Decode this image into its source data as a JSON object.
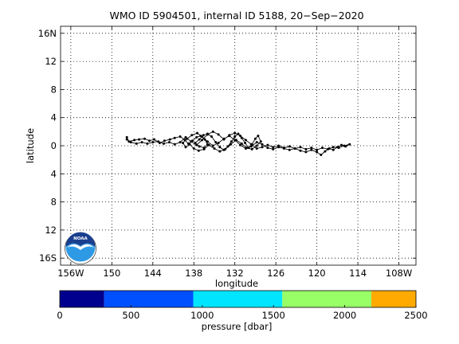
{
  "chart_data": {
    "type": "line",
    "title": "WMO ID 5904501, internal ID 5188, 20−Sep−2020",
    "xlabel": "longitude",
    "ylabel": "latitude",
    "xlim": [
      -157.5,
      -105.5
    ],
    "ylim": [
      -17,
      17
    ],
    "grid": true,
    "x_ticks": [
      {
        "value": -156,
        "label": "156W"
      },
      {
        "value": -150,
        "label": "150"
      },
      {
        "value": -144,
        "label": "144"
      },
      {
        "value": -138,
        "label": "138"
      },
      {
        "value": -132,
        "label": "132"
      },
      {
        "value": -126,
        "label": "126"
      },
      {
        "value": -120,
        "label": "120"
      },
      {
        "value": -114,
        "label": "114"
      },
      {
        "value": -108,
        "label": "108W"
      }
    ],
    "y_ticks": [
      {
        "value": 16,
        "label": "16N"
      },
      {
        "value": 12,
        "label": "12"
      },
      {
        "value": 8,
        "label": "8"
      },
      {
        "value": 4,
        "label": "4"
      },
      {
        "value": 0,
        "label": "0"
      },
      {
        "value": -4,
        "label": "4"
      },
      {
        "value": -8,
        "label": "8"
      },
      {
        "value": -12,
        "label": "12"
      },
      {
        "value": -16,
        "label": "16S"
      }
    ],
    "series": [
      {
        "color": "#000000",
        "points": [
          [
            -147.8,
            1.2
          ],
          [
            -147.5,
            0.6
          ],
          [
            -146.7,
            0.8
          ],
          [
            -146.0,
            0.9
          ],
          [
            -145.2,
            1.0
          ],
          [
            -144.5,
            0.7
          ],
          [
            -143.8,
            0.9
          ],
          [
            -143.0,
            0.4
          ],
          [
            -142.3,
            0.7
          ],
          [
            -141.5,
            0.9
          ],
          [
            -140.8,
            1.1
          ],
          [
            -140.0,
            1.3
          ],
          [
            -139.3,
            0.8
          ],
          [
            -138.8,
            0.3
          ],
          [
            -138.2,
            0.7
          ],
          [
            -137.6,
            1.2
          ],
          [
            -137.0,
            1.4
          ],
          [
            -136.4,
            0.9
          ],
          [
            -136.0,
            0.2
          ],
          [
            -136.5,
            -0.3
          ],
          [
            -137.2,
            -0.1
          ],
          [
            -137.8,
            0.4
          ],
          [
            -137.2,
            0.9
          ],
          [
            -136.6,
            1.5
          ],
          [
            -136.0,
            1.7
          ],
          [
            -135.4,
            1.3
          ],
          [
            -134.8,
            0.5
          ],
          [
            -134.2,
            -0.2
          ],
          [
            -133.6,
            -0.6
          ],
          [
            -133.0,
            -0.1
          ],
          [
            -132.5,
            0.6
          ],
          [
            -132.0,
            1.3
          ],
          [
            -131.5,
            1.7
          ],
          [
            -131.0,
            1.1
          ],
          [
            -130.5,
            0.4
          ],
          [
            -130.0,
            -0.3
          ],
          [
            -129.5,
            0.2
          ],
          [
            -129.0,
            1.0
          ],
          [
            -128.6,
            1.4
          ],
          [
            -128.2,
            0.6
          ],
          [
            -128.8,
            0.0
          ],
          [
            -129.5,
            -0.5
          ],
          [
            -130.3,
            -0.3
          ],
          [
            -131.0,
            0.3
          ],
          [
            -131.8,
            0.8
          ],
          [
            -132.6,
            0.2
          ],
          [
            -133.4,
            -0.5
          ],
          [
            -134.2,
            -0.8
          ],
          [
            -135.0,
            -0.4
          ],
          [
            -135.8,
            0.1
          ],
          [
            -136.5,
            -0.5
          ],
          [
            -137.3,
            -0.7
          ],
          [
            -138.0,
            -0.4
          ],
          [
            -138.6,
            0.2
          ],
          [
            -139.2,
            -0.2
          ],
          [
            -139.6,
            0.4
          ],
          [
            -139.0,
            1.0
          ],
          [
            -138.3,
            1.5
          ],
          [
            -137.5,
            1.8
          ],
          [
            -136.8,
            1.3
          ],
          [
            -136.0,
            0.6
          ],
          [
            -135.2,
            0.0
          ],
          [
            -134.4,
            0.4
          ],
          [
            -133.6,
            1.0
          ],
          [
            -132.8,
            1.4
          ],
          [
            -132.0,
            0.8
          ],
          [
            -131.2,
            0.1
          ],
          [
            -130.4,
            -0.4
          ],
          [
            -129.6,
            -0.1
          ],
          [
            -128.8,
            0.5
          ],
          [
            -128.0,
            0.2
          ],
          [
            -127.2,
            -0.3
          ],
          [
            -126.4,
            -0.5
          ],
          [
            -125.6,
            -0.2
          ],
          [
            -124.8,
            -0.4
          ],
          [
            -124.0,
            -0.6
          ],
          [
            -123.2,
            -0.4
          ],
          [
            -122.4,
            -0.7
          ],
          [
            -121.6,
            -0.9
          ],
          [
            -120.8,
            -0.6
          ],
          [
            -120.0,
            -0.9
          ],
          [
            -119.4,
            -1.3
          ],
          [
            -118.8,
            -0.8
          ],
          [
            -118.2,
            -0.4
          ],
          [
            -117.6,
            -0.6
          ],
          [
            -117.0,
            -0.2
          ],
          [
            -116.4,
            0.1
          ],
          [
            -115.8,
            -0.1
          ],
          [
            -115.2,
            0.2
          ],
          [
            -116.0,
            0.0
          ],
          [
            -116.8,
            -0.3
          ],
          [
            -117.6,
            -0.2
          ],
          [
            -118.4,
            -0.5
          ],
          [
            -119.2,
            -0.3
          ],
          [
            -120.0,
            -0.6
          ],
          [
            -120.8,
            -0.3
          ],
          [
            -121.6,
            -0.5
          ],
          [
            -122.4,
            -0.2
          ],
          [
            -123.2,
            -0.4
          ],
          [
            -124.0,
            -0.1
          ],
          [
            -124.8,
            -0.3
          ],
          [
            -125.6,
            0.0
          ],
          [
            -126.4,
            -0.2
          ],
          [
            -127.2,
            0.1
          ],
          [
            -128.0,
            -0.2
          ],
          [
            -128.8,
            -0.4
          ],
          [
            -129.6,
            0.2
          ],
          [
            -130.4,
            0.8
          ],
          [
            -131.2,
            1.4
          ],
          [
            -132.0,
            1.8
          ],
          [
            -132.8,
            1.5
          ],
          [
            -133.6,
            0.9
          ],
          [
            -134.4,
            1.6
          ],
          [
            -135.2,
            2.0
          ],
          [
            -136.0,
            1.6
          ],
          [
            -136.8,
            0.8
          ],
          [
            -137.6,
            0.1
          ],
          [
            -138.4,
            0.6
          ],
          [
            -139.2,
            1.2
          ],
          [
            -140.0,
            0.5
          ],
          [
            -140.8,
            0.2
          ],
          [
            -141.6,
            0.5
          ],
          [
            -142.4,
            0.3
          ],
          [
            -143.2,
            0.6
          ],
          [
            -144.0,
            0.5
          ],
          [
            -144.8,
            0.3
          ],
          [
            -145.6,
            0.5
          ],
          [
            -146.4,
            0.3
          ],
          [
            -147.2,
            0.5
          ],
          [
            -147.8,
            0.9
          ]
        ]
      }
    ]
  },
  "colorbar": {
    "label": "pressure [dbar]",
    "min": 0,
    "max": 2500,
    "tick_labels": [
      "0",
      "500",
      "1000",
      "1500",
      "2000",
      "2500"
    ],
    "segments": [
      {
        "from": 0,
        "to": 312,
        "color": "#00008f"
      },
      {
        "from": 312,
        "to": 937,
        "color": "#0050ff"
      },
      {
        "from": 937,
        "to": 1562,
        "color": "#00e5ff"
      },
      {
        "from": 1562,
        "to": 2187,
        "color": "#99ff66"
      },
      {
        "from": 2187,
        "to": 2500,
        "color": "#ffaa00"
      }
    ]
  },
  "logo": {
    "text": "NOAA",
    "colors": {
      "top": "#1a3f8f",
      "bottom": "#2e9ae6",
      "gull": "#ffffff"
    }
  }
}
